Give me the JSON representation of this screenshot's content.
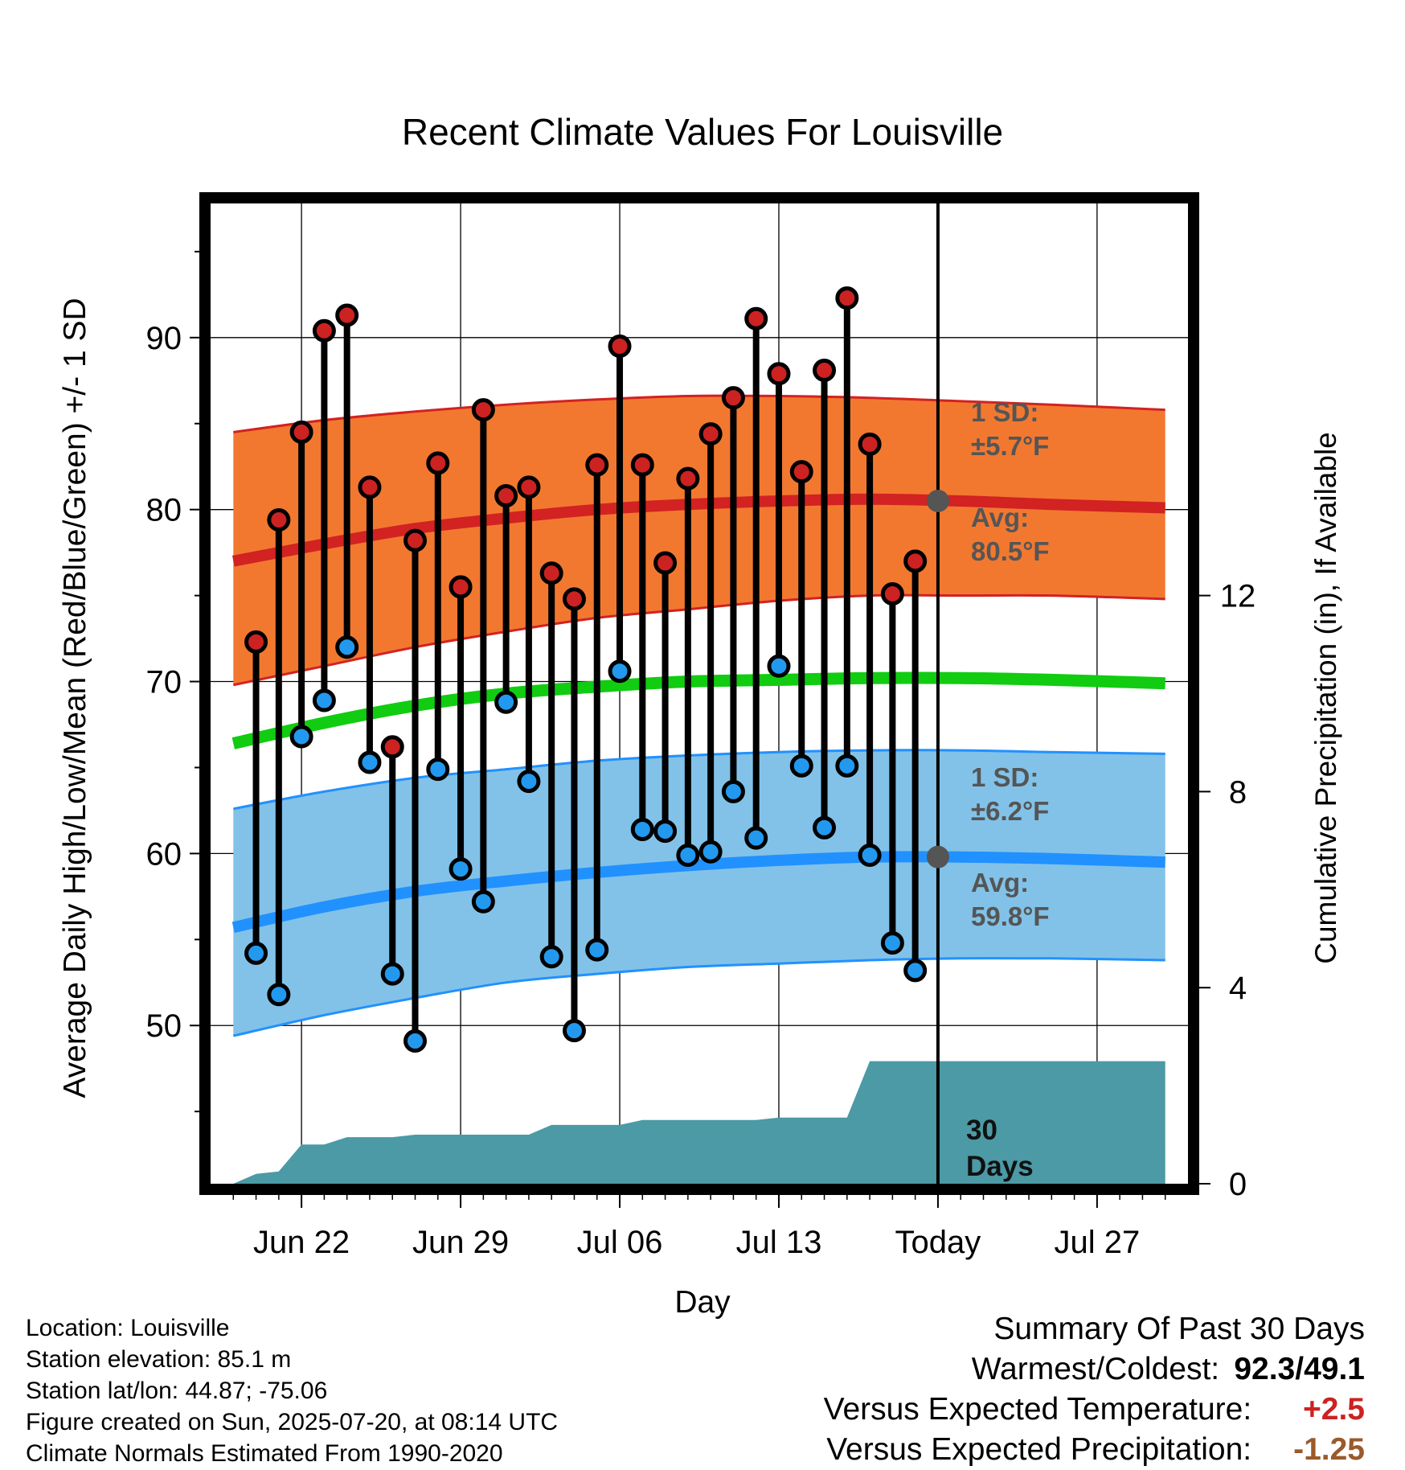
{
  "title": "Recent Climate Values For Louisville",
  "xlabel": "Day",
  "ylabel_left": "Average Daily High/Low/Mean (Red/Blue/Green) +/- 1 SD",
  "ylabel_right": "Cumulative Precipitation (in), If Available",
  "annotations": {
    "high_sd_label": "1 SD:",
    "high_sd_value": "±5.7°F",
    "high_avg_label": "Avg:",
    "high_avg_value": "80.5°F",
    "low_sd_label": "1 SD:",
    "low_sd_value": "±6.2°F",
    "low_avg_label": "Avg:",
    "low_avg_value": "59.8°F",
    "period_number": "30",
    "period_unit": "Days"
  },
  "colors": {
    "high_band": "#f27830",
    "high_line": "#d22222",
    "low_band": "#82c2e8",
    "low_line": "#2191ff",
    "mean_line": "#11cc11",
    "precip_fill": "#4b9aa5",
    "high_marker": "#cc2222",
    "low_marker": "#2299ee",
    "annotation_text": "#555555"
  },
  "chart_data": {
    "type": "line",
    "x_start": "2025-06-19",
    "x_end": "2025-07-30",
    "xlim": [
      "2025-06-18",
      "2025-07-31"
    ],
    "ylim": [
      40.8,
      97.8
    ],
    "ylim_right": [
      0,
      20.0
    ],
    "x_ticks": [
      {
        "date": "2025-06-22",
        "label": "Jun 22"
      },
      {
        "date": "2025-06-29",
        "label": "Jun 29"
      },
      {
        "date": "2025-07-06",
        "label": "Jul 06"
      },
      {
        "date": "2025-07-13",
        "label": "Jul 13"
      },
      {
        "date": "2025-07-20",
        "label": "Today"
      },
      {
        "date": "2025-07-27",
        "label": "Jul 27"
      }
    ],
    "y_ticks_left": [
      50,
      60,
      70,
      80,
      90
    ],
    "y_ticks_right": [
      0,
      4,
      8,
      12
    ],
    "today": "2025-07-20",
    "normals": {
      "dates": [
        "2025-06-19",
        "2025-06-23",
        "2025-06-27",
        "2025-07-01",
        "2025-07-05",
        "2025-07-09",
        "2025-07-13",
        "2025-07-17",
        "2025-07-21",
        "2025-07-25",
        "2025-07-30"
      ],
      "high_mean": [
        77.0,
        78.0,
        78.9,
        79.5,
        80.0,
        80.3,
        80.5,
        80.6,
        80.5,
        80.3,
        80.1
      ],
      "high_upper": [
        84.5,
        85.2,
        85.7,
        86.1,
        86.4,
        86.6,
        86.6,
        86.5,
        86.3,
        86.1,
        85.8
      ],
      "high_lower": [
        69.8,
        70.9,
        72.0,
        72.9,
        73.7,
        74.2,
        74.7,
        75.0,
        75.0,
        75.0,
        74.8
      ],
      "mean": [
        66.4,
        67.6,
        68.6,
        69.3,
        69.7,
        70.0,
        70.1,
        70.2,
        70.2,
        70.1,
        69.9
      ],
      "low_mean": [
        55.7,
        56.9,
        57.8,
        58.4,
        58.9,
        59.3,
        59.6,
        59.8,
        59.8,
        59.7,
        59.5
      ],
      "low_upper": [
        62.6,
        63.6,
        64.4,
        64.9,
        65.4,
        65.7,
        65.9,
        66.0,
        66.0,
        65.9,
        65.8
      ],
      "low_lower": [
        49.4,
        50.6,
        51.6,
        52.5,
        53.0,
        53.4,
        53.6,
        53.8,
        53.9,
        53.9,
        53.8
      ]
    },
    "series": [
      {
        "name": "High",
        "dates": [
          "2025-06-20",
          "2025-06-21",
          "2025-06-22",
          "2025-06-23",
          "2025-06-24",
          "2025-06-25",
          "2025-06-26",
          "2025-06-27",
          "2025-06-28",
          "2025-06-29",
          "2025-06-30",
          "2025-07-01",
          "2025-07-02",
          "2025-07-03",
          "2025-07-04",
          "2025-07-05",
          "2025-07-06",
          "2025-07-07",
          "2025-07-08",
          "2025-07-09",
          "2025-07-10",
          "2025-07-11",
          "2025-07-12",
          "2025-07-13",
          "2025-07-14",
          "2025-07-15",
          "2025-07-16",
          "2025-07-17",
          "2025-07-18",
          "2025-07-19"
        ],
        "values": [
          72.3,
          79.4,
          84.5,
          90.4,
          91.3,
          81.3,
          66.2,
          78.2,
          82.7,
          75.5,
          85.8,
          80.8,
          81.3,
          76.3,
          74.8,
          82.6,
          89.5,
          82.6,
          76.9,
          81.8,
          84.4,
          86.5,
          91.1,
          87.9,
          82.2,
          88.1,
          92.3,
          83.8,
          75.1,
          77.0
        ]
      },
      {
        "name": "Low",
        "dates": [
          "2025-06-20",
          "2025-06-21",
          "2025-06-22",
          "2025-06-23",
          "2025-06-24",
          "2025-06-25",
          "2025-06-26",
          "2025-06-27",
          "2025-06-28",
          "2025-06-29",
          "2025-06-30",
          "2025-07-01",
          "2025-07-02",
          "2025-07-03",
          "2025-07-04",
          "2025-07-05",
          "2025-07-06",
          "2025-07-07",
          "2025-07-08",
          "2025-07-09",
          "2025-07-10",
          "2025-07-11",
          "2025-07-12",
          "2025-07-13",
          "2025-07-14",
          "2025-07-15",
          "2025-07-16",
          "2025-07-17",
          "2025-07-18",
          "2025-07-19"
        ],
        "values": [
          54.2,
          51.8,
          66.8,
          68.9,
          72.0,
          65.3,
          53.0,
          49.1,
          64.9,
          59.1,
          57.2,
          68.8,
          64.2,
          54.0,
          49.7,
          54.4,
          70.6,
          61.4,
          61.3,
          59.9,
          60.1,
          63.6,
          60.9,
          70.9,
          65.1,
          61.5,
          65.1,
          59.9,
          54.8,
          53.2
        ]
      }
    ],
    "precip": {
      "dates": [
        "2025-06-19",
        "2025-06-20",
        "2025-06-21",
        "2025-06-22",
        "2025-06-23",
        "2025-06-24",
        "2025-06-25",
        "2025-06-26",
        "2025-06-27",
        "2025-06-28",
        "2025-06-29",
        "2025-06-30",
        "2025-07-01",
        "2025-07-02",
        "2025-07-03",
        "2025-07-04",
        "2025-07-05",
        "2025-07-06",
        "2025-07-07",
        "2025-07-08",
        "2025-07-09",
        "2025-07-10",
        "2025-07-11",
        "2025-07-12",
        "2025-07-13",
        "2025-07-14",
        "2025-07-15",
        "2025-07-16",
        "2025-07-17",
        "2025-07-18",
        "2025-07-19",
        "2025-07-20",
        "2025-07-30"
      ],
      "values": [
        0.0,
        0.2,
        0.25,
        0.8,
        0.8,
        0.95,
        0.95,
        0.95,
        1.0,
        1.0,
        1.0,
        1.0,
        1.0,
        1.0,
        1.2,
        1.2,
        1.2,
        1.2,
        1.3,
        1.3,
        1.3,
        1.3,
        1.3,
        1.3,
        1.35,
        1.35,
        1.35,
        1.35,
        2.5,
        2.5,
        2.5,
        2.5,
        2.5
      ]
    }
  },
  "footer": {
    "location": "Location: Louisville",
    "elevation": "Station elevation: 85.1 m",
    "latlon": "Station lat/lon: 44.87; -75.06",
    "created": "Figure created on Sun, 2025-07-20, at 08:14 UTC",
    "normals": "Climate Normals Estimated From 1990-2020"
  },
  "summary": {
    "heading": "Summary Of Past 30 Days",
    "warmest_coldest_label": "Warmest/Coldest:",
    "warmest_coldest_value": "92.3/49.1",
    "temp_label": "Versus Expected Temperature:",
    "temp_value": "+2.5",
    "precip_label": "Versus Expected Precipitation:",
    "precip_value": "-1.25"
  }
}
